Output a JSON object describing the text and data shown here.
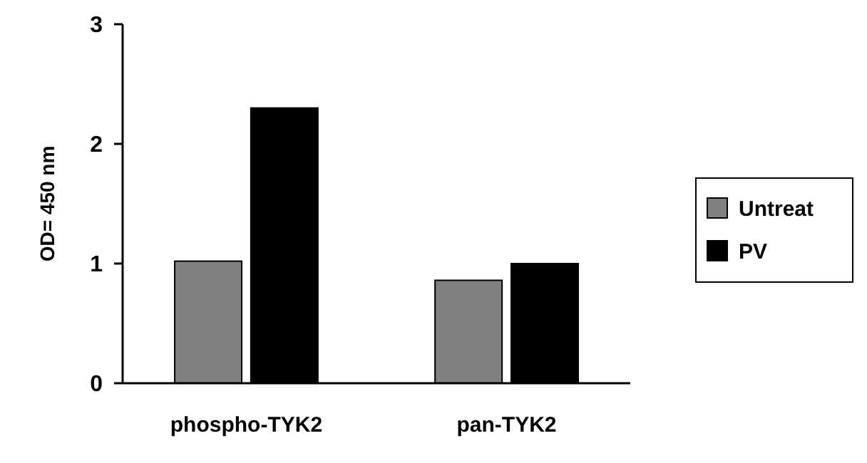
{
  "chart_data": {
    "type": "bar",
    "ylabel": "OD= 450 nm",
    "categories": [
      "phospho-TYK2",
      "pan-TYK2"
    ],
    "series": [
      {
        "name": "Untreat",
        "color": "#808080",
        "values": [
          1.02,
          0.86
        ]
      },
      {
        "name": "PV",
        "color": "#000000",
        "values": [
          2.3,
          1.0
        ]
      }
    ],
    "ylim": [
      0,
      3
    ],
    "yticks": [
      0,
      1,
      2,
      3
    ],
    "grid": false,
    "legend": "right"
  }
}
